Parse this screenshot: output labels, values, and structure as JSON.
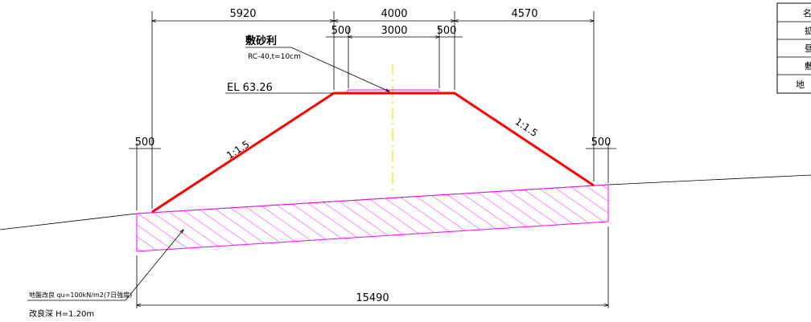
{
  "dimensions": {
    "left_top": "5920",
    "center_top": "4000",
    "right_top": "4570",
    "shoulder_left": "500",
    "crown_width": "3000",
    "shoulder_right": "500",
    "toe_left": "500",
    "toe_right": "500",
    "base_total": "15490"
  },
  "labels": {
    "gravel_title": "敷砂利",
    "gravel_spec": "RC-40,t=10cm",
    "elevation": "EL 63.26",
    "slope_left": "1:1.5",
    "slope_right": "1:1.5",
    "soil_improvement": "地盤改良 qu=100kN/m2(7日強度)",
    "improvement_depth": "改良深 H=1.20m"
  },
  "table": {
    "rows": [
      "名",
      "拡",
      "昼",
      "敷",
      "地"
    ]
  },
  "colors": {
    "embankment": "#ff0000",
    "improvement_hatch": "#ff00ff",
    "centerline": "#e6e600",
    "lines": "#000000"
  }
}
